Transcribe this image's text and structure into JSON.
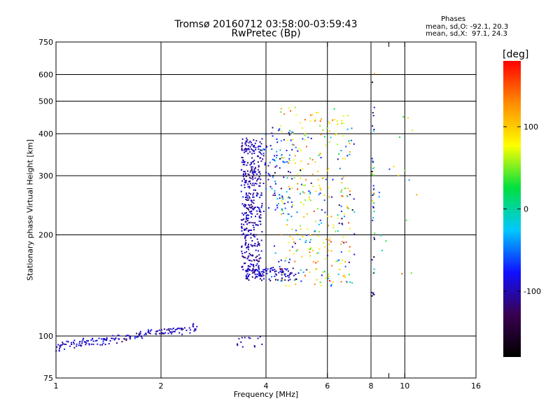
{
  "title": {
    "line1": "Tromsø 20160712 03:58:00-03:59:43",
    "line2": "RwPretec (Bp)"
  },
  "stats": {
    "heading": "Phases",
    "o_mode": "mean, sd,O: -92.1, 20.3",
    "x_mode": "mean, sd,X:  97.1, 24.3"
  },
  "chart_data": {
    "type": "scatter",
    "title": "Tromsø 20160712 03:58:00-03:59:43",
    "subtitle": "RwPretec (Bp)",
    "xlabel": "Frequency [MHz]",
    "ylabel": "Stationary phase Virtual Height [km]",
    "xscale": "log",
    "yscale": "log",
    "xlim": [
      1,
      16
    ],
    "ylim": [
      75,
      750
    ],
    "x_ticks": [
      1,
      2,
      4,
      6,
      8,
      9,
      10,
      16
    ],
    "x_tick_labels": [
      "1",
      "2",
      "4",
      "6",
      "8",
      "",
      "10",
      "16"
    ],
    "x_gridlines": [
      2,
      4,
      6,
      8,
      10
    ],
    "y_ticks": [
      75,
      100,
      200,
      300,
      400,
      500,
      600,
      750
    ],
    "y_gridlines": [
      100,
      200,
      300,
      400,
      500,
      600
    ],
    "grid": true,
    "colorbar": {
      "label": "[deg]",
      "range": [
        -180,
        180
      ],
      "ticks": [
        100,
        0,
        -100
      ],
      "colors": [
        "#000000",
        "#3a0050",
        "#1010ff",
        "#00c8ff",
        "#00e040",
        "#ffff00",
        "#ff8c00",
        "#ff0000"
      ]
    },
    "clusters": [
      {
        "name": "low-trace",
        "fmin": 1.0,
        "fmax": 2.55,
        "hmin": 93,
        "hmax": 106,
        "slope": 0.08,
        "n": 170,
        "phase_mean": -95,
        "phase_sd": 15
      },
      {
        "name": "f-trace-dense",
        "fmin": 3.4,
        "fmax": 3.9,
        "hmin": 150,
        "hmax": 390,
        "n": 420,
        "phase_mean": -100,
        "phase_sd": 15
      },
      {
        "name": "f-trace-upper",
        "fmin": 3.9,
        "fmax": 4.8,
        "hmin": 230,
        "hmax": 420,
        "n": 90,
        "phase_mean": -80,
        "phase_sd": 30
      },
      {
        "name": "lower-band",
        "fmin": 3.5,
        "fmax": 4.9,
        "hmin": 146,
        "hmax": 160,
        "n": 110,
        "phase_mean": -100,
        "phase_sd": 15
      },
      {
        "name": "x-mode-spread",
        "fmin": 4.4,
        "fmax": 7.0,
        "hmin": 140,
        "hmax": 480,
        "n": 230,
        "phase_mean": 95,
        "phase_sd": 30
      },
      {
        "name": "mixed-spread",
        "fmin": 4.2,
        "fmax": 7.2,
        "hmin": 140,
        "hmax": 420,
        "n": 120,
        "phase_mean": -60,
        "phase_sd": 40
      },
      {
        "name": "vertical-line",
        "fmin": 8.05,
        "fmax": 8.2,
        "hmin": 130,
        "hmax": 640,
        "n": 45,
        "phase_mean": -60,
        "phase_sd": 80
      },
      {
        "name": "sparse-high",
        "fmin": 8.4,
        "fmax": 11.0,
        "hmin": 150,
        "hmax": 480,
        "n": 18,
        "phase_mean": 40,
        "phase_sd": 80
      },
      {
        "name": "low-outliers",
        "fmin": 3.3,
        "fmax": 3.9,
        "hmin": 92,
        "hmax": 100,
        "n": 14,
        "phase_mean": -100,
        "phase_sd": 10
      }
    ]
  }
}
